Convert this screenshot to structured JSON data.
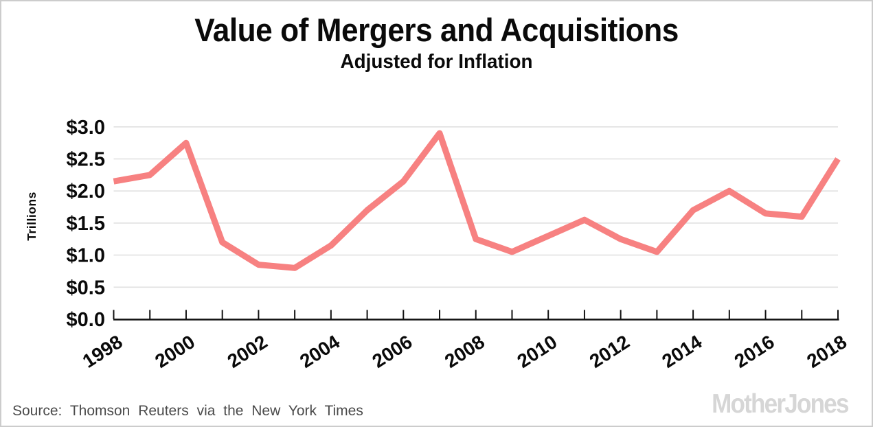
{
  "figure": {
    "title": "Value of Mergers and Acquisitions",
    "subtitle": "Adjusted for Inflation",
    "source": "Source: Thomson Reuters via the New York Times",
    "logo": "MotherJones"
  },
  "colors": {
    "line": "#f78181",
    "grid": "#e0e0e0",
    "axis": "#111111",
    "text": "#0a0a0a",
    "source_text": "#4b4b4b",
    "logo_gray": "#d6d6d6",
    "border": "#cccccc",
    "background": "#ffffff"
  },
  "chart_data": {
    "type": "line",
    "title": "Value of Mergers and Acquisitions",
    "subtitle": "Adjusted for Inflation",
    "xlabel": "",
    "ylabel": "Trillions",
    "x": [
      1998,
      1999,
      2000,
      2001,
      2002,
      2003,
      2004,
      2005,
      2006,
      2007,
      2008,
      2009,
      2010,
      2011,
      2012,
      2013,
      2014,
      2015,
      2016,
      2017,
      2018
    ],
    "values": [
      2.15,
      2.25,
      2.75,
      1.2,
      0.85,
      0.8,
      1.15,
      1.7,
      2.15,
      2.9,
      1.25,
      1.05,
      1.3,
      1.55,
      1.25,
      1.05,
      1.7,
      2.0,
      1.65,
      1.6,
      2.5
    ],
    "units": "trillions of dollars",
    "ylim": [
      0,
      3.0
    ],
    "ytick_step": 0.5,
    "ytick_labels": [
      "$0.0",
      "$0.5",
      "$1.0",
      "$1.5",
      "$2.0",
      "$2.5",
      "$3.0"
    ],
    "xtick_labeled_years": [
      1998,
      2000,
      2002,
      2004,
      2006,
      2008,
      2010,
      2012,
      2014,
      2016,
      2018
    ],
    "xtick_minor_every": 1,
    "grid": "horizontal",
    "legend": "none",
    "line_color": "#f78181",
    "line_width": 9
  }
}
